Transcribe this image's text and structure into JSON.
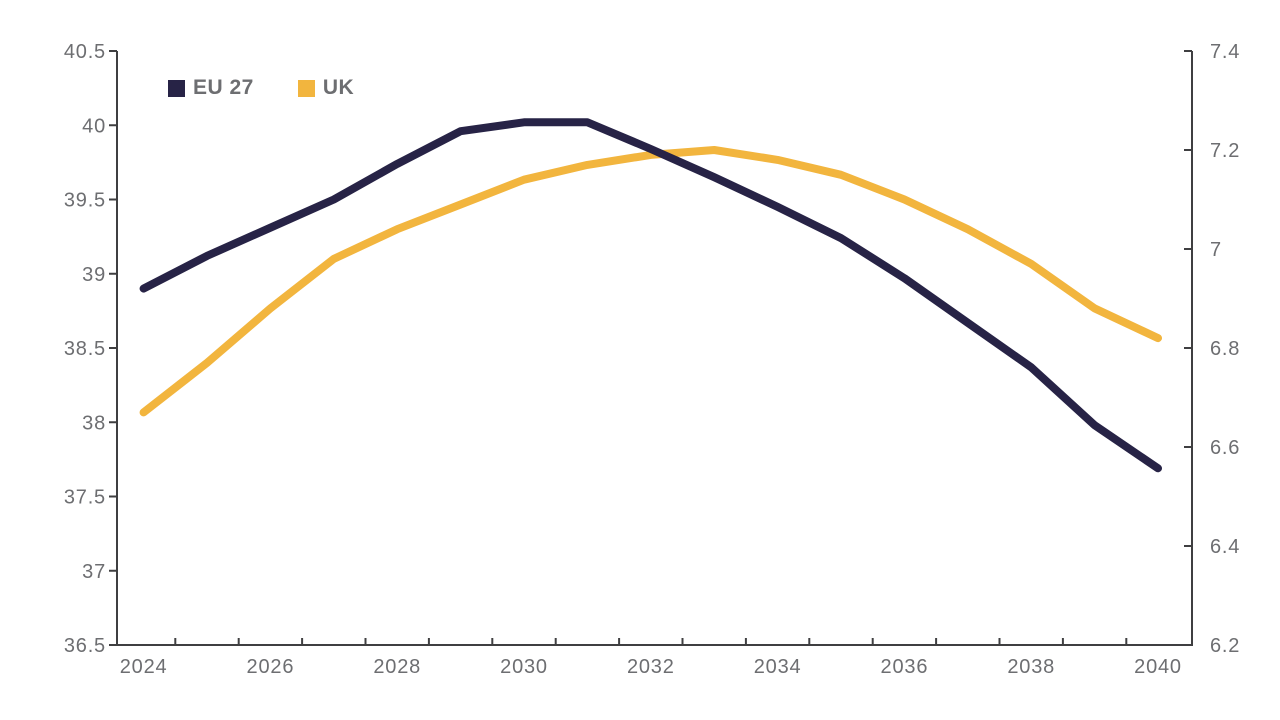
{
  "chart_data": {
    "type": "line",
    "title": "",
    "xlabel": "",
    "ylabel_left": "",
    "ylabel_right": "",
    "grid": false,
    "legend_position": "top-left",
    "x": [
      2024,
      2025,
      2026,
      2027,
      2028,
      2029,
      2030,
      2031,
      2032,
      2033,
      2034,
      2035,
      2036,
      2037,
      2038,
      2039,
      2040
    ],
    "x_axis": {
      "min": 2024,
      "max": 2040,
      "tick_labels": [
        "2024",
        "2026",
        "2028",
        "2030",
        "2032",
        "2034",
        "2036",
        "2038",
        "2040"
      ],
      "label_years": [
        2024,
        2026,
        2028,
        2030,
        2032,
        2034,
        2036,
        2038,
        2040
      ],
      "minor_ticks_at_half_years": true
    },
    "left_axis": {
      "min": 36.5,
      "max": 40.5,
      "step": 0.5,
      "tick_labels": [
        "40.5",
        "40",
        "39.5",
        "39",
        "38.5",
        "38",
        "37.5",
        "37",
        "36.5"
      ]
    },
    "right_axis": {
      "min": 6.2,
      "max": 7.4,
      "step": 0.2,
      "tick_labels": [
        "7.4",
        "7.2",
        "7",
        "6.8",
        "6.6",
        "6.4",
        "6.2"
      ]
    },
    "series": [
      {
        "name": "EU 27",
        "axis": "left",
        "color": "#272346",
        "values": [
          38.9,
          39.12,
          39.31,
          39.5,
          39.74,
          39.96,
          40.02,
          40.02,
          39.84,
          39.65,
          39.45,
          39.24,
          38.97,
          38.67,
          38.37,
          37.98,
          37.69
        ]
      },
      {
        "name": "UK",
        "axis": "right",
        "color": "#F2B53E",
        "values": [
          6.67,
          6.77,
          6.88,
          6.98,
          7.04,
          7.09,
          7.14,
          7.17,
          7.19,
          7.2,
          7.18,
          7.15,
          7.1,
          7.04,
          6.97,
          6.88,
          6.82
        ]
      }
    ],
    "colors": {
      "axis_line": "#3f3f41",
      "tick_label": "#6d6e71",
      "background": "#ffffff"
    }
  }
}
